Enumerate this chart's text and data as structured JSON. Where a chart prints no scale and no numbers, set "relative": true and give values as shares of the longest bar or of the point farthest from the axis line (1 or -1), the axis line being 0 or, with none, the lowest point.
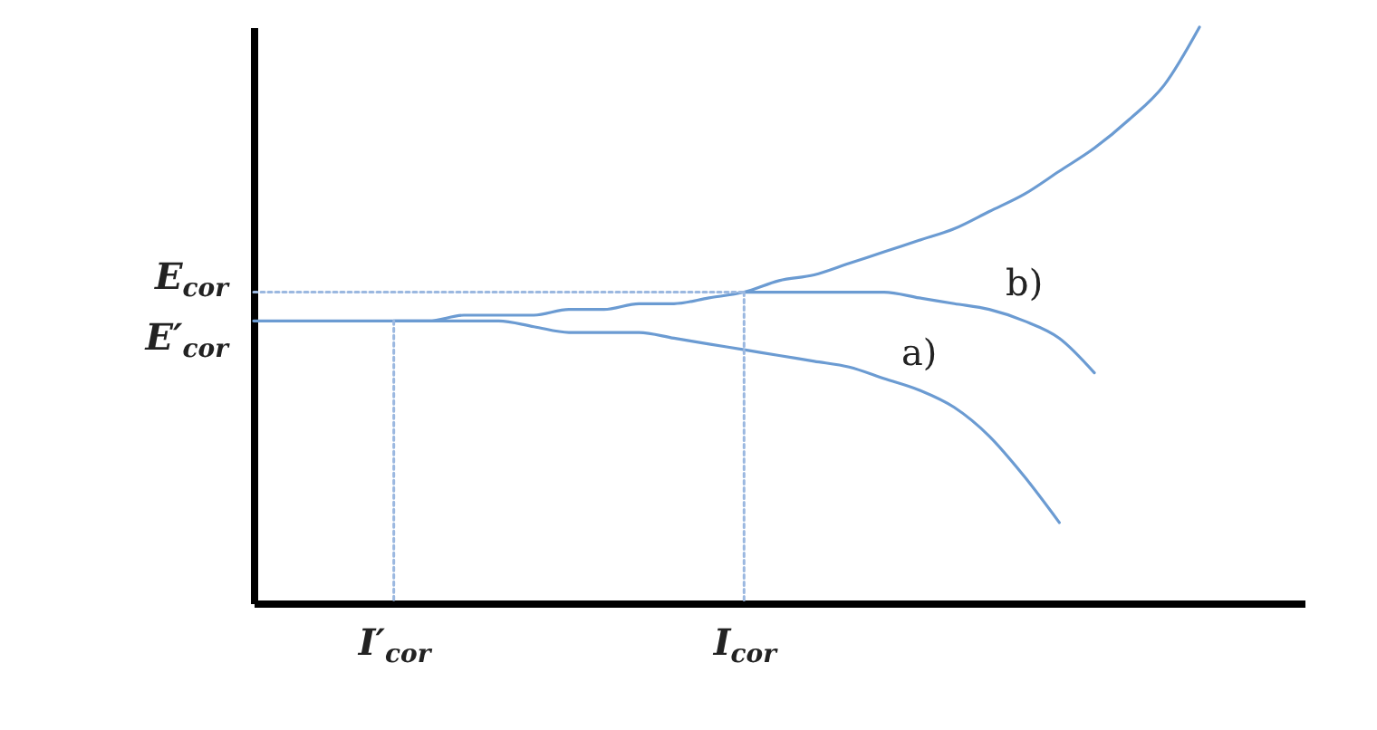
{
  "chart_data": {
    "type": "line",
    "relative": true,
    "marker": "none",
    "categories": [
      null,
      null,
      null,
      null,
      "I′$_{cor}$",
      null,
      null,
      null,
      null,
      null,
      null,
      null,
      null,
      null,
      "I$_{cor}$",
      null,
      null,
      null,
      null,
      null,
      null,
      null,
      null,
      null,
      null,
      null,
      null,
      null,
      null,
      null,
      null
    ],
    "annotations": [
      "a)",
      "b)",
      "E$_{cor}$",
      "E′$_{cor}$"
    ],
    "series": [
      {
        "color": "#6b9bd2",
        "line_style": "solid",
        "values": [
          0.49,
          0.49,
          0.49,
          0.49,
          0.49,
          0.49,
          0.5,
          0.5,
          0.5,
          0.51,
          0.51,
          0.52,
          0.52,
          0.53,
          0.54,
          0.56,
          0.57,
          0.59,
          0.61,
          0.63,
          0.65,
          0.68,
          0.71,
          0.75,
          0.79,
          0.84,
          0.9,
          1,
          null,
          null,
          null
        ]
      },
      {
        "color": "#6b9bd2",
        "line_style": "solid",
        "values": [
          null,
          null,
          null,
          null,
          0.49,
          0.49,
          0.49,
          0.49,
          0.48,
          0.47,
          0.47,
          0.47,
          0.46,
          0.45,
          0.44,
          0.43,
          0.42,
          0.41,
          0.39,
          0.37,
          0.34,
          0.29,
          0.22,
          0.14,
          null,
          null,
          null,
          null,
          null,
          null,
          null
        ]
      },
      {
        "color": "#6b9bd2",
        "line_style": "solid",
        "values": [
          null,
          null,
          null,
          null,
          null,
          null,
          null,
          null,
          null,
          null,
          null,
          null,
          null,
          null,
          0.54,
          0.54,
          0.54,
          0.54,
          0.54,
          0.53,
          0.52,
          0.51,
          0.49,
          0.46,
          0.4,
          null,
          null,
          null,
          null,
          null,
          null
        ]
      },
      {
        "color": "#9bb8e0",
        "line_style": "dotted",
        "values": [
          0.54,
          0.54,
          0.54,
          0.54,
          0.54,
          0.54,
          0.54,
          0.54,
          0.54,
          0.54,
          0.54,
          0.54,
          0.54,
          0.54,
          0.54,
          null,
          null,
          null,
          null,
          null,
          null,
          null,
          null,
          null,
          null,
          null,
          null,
          null,
          null,
          null,
          null
        ]
      },
      {
        "color": "#9bb8e0",
        "line_style": "dotted",
        "x": [
          "I$_{cor}$",
          "I$_{cor}$"
        ],
        "values": [
          0.54,
          0
        ]
      },
      {
        "color": "#9bb8e0",
        "line_style": "dotted",
        "x": [
          "I′$_{cor}$",
          "I′$_{cor}$"
        ],
        "values": [
          0.49,
          0
        ]
      }
    ]
  }
}
